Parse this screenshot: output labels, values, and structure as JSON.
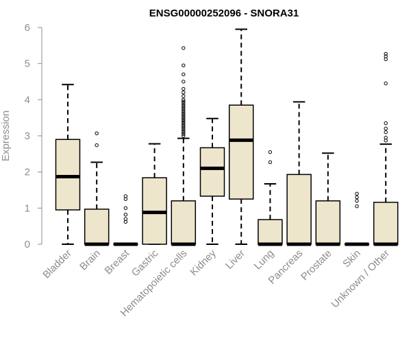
{
  "chart_data": {
    "type": "boxplot",
    "title": "ENSG00000252096 - SNORA31",
    "xlabel": "",
    "ylabel": "Expression",
    "ylim": [
      0,
      6
    ],
    "yticks": [
      "0",
      "1",
      "2",
      "3",
      "4",
      "5",
      "6"
    ],
    "grid": false,
    "colors": {
      "box_fill": "#ede6cc",
      "line": "#000000",
      "axis": "#8c8c8c",
      "text": "#8c8c8c",
      "title": "#000000"
    },
    "categories": [
      "Bladder",
      "Brain",
      "Breast",
      "Gastric",
      "Hematopoietic cells",
      "Kidney",
      "Liver",
      "Lung",
      "Pancreas",
      "Prostate",
      "Skin",
      "Unknown / Other"
    ],
    "boxes": [
      {
        "name": "Bladder",
        "whisker_low": 0,
        "q1": 0.95,
        "median": 1.87,
        "q3": 2.9,
        "whisker_high": 4.42,
        "outliers": []
      },
      {
        "name": "Brain",
        "whisker_low": 0,
        "q1": 0,
        "median": 0,
        "q3": 0.97,
        "whisker_high": 2.27,
        "outliers": [
          2.74,
          3.07
        ]
      },
      {
        "name": "Breast",
        "whisker_low": 0,
        "q1": 0,
        "median": 0,
        "q3": 0,
        "whisker_high": 0,
        "outliers": [
          0.62,
          0.7,
          0.82,
          1.0,
          1.25,
          1.33
        ]
      },
      {
        "name": "Gastric",
        "whisker_low": 0,
        "q1": 0,
        "median": 0.88,
        "q3": 1.84,
        "whisker_high": 2.78,
        "outliers": []
      },
      {
        "name": "Hematopoietic cells",
        "whisker_low": 0,
        "q1": 0,
        "median": 0,
        "q3": 1.2,
        "whisker_high": 2.93,
        "outliers": [
          3.0,
          3.05,
          3.1,
          3.15,
          3.2,
          3.25,
          3.3,
          3.35,
          3.4,
          3.45,
          3.5,
          3.55,
          3.6,
          3.65,
          3.7,
          3.75,
          3.8,
          3.85,
          3.9,
          3.95,
          4.0,
          4.1,
          4.2,
          4.3,
          4.5,
          4.7,
          4.95,
          5.43
        ]
      },
      {
        "name": "Kidney",
        "whisker_low": 0,
        "q1": 1.33,
        "median": 2.1,
        "q3": 2.67,
        "whisker_high": 3.48,
        "outliers": []
      },
      {
        "name": "Liver",
        "whisker_low": 0,
        "q1": 1.25,
        "median": 2.88,
        "q3": 3.85,
        "whisker_high": 5.95,
        "outliers": []
      },
      {
        "name": "Lung",
        "whisker_low": 0,
        "q1": 0,
        "median": 0,
        "q3": 0.68,
        "whisker_high": 1.67,
        "outliers": [
          2.27,
          2.55
        ]
      },
      {
        "name": "Pancreas",
        "whisker_low": 0,
        "q1": 0,
        "median": 0,
        "q3": 1.93,
        "whisker_high": 3.94,
        "outliers": []
      },
      {
        "name": "Prostate",
        "whisker_low": 0,
        "q1": 0,
        "median": 0,
        "q3": 1.2,
        "whisker_high": 2.52,
        "outliers": []
      },
      {
        "name": "Skin",
        "whisker_low": 0,
        "q1": 0,
        "median": 0,
        "q3": 0,
        "whisker_high": 0,
        "outliers": [
          1.05,
          1.2,
          1.3,
          1.4
        ]
      },
      {
        "name": "Unknown / Other",
        "whisker_low": 0,
        "q1": 0,
        "median": 0,
        "q3": 1.16,
        "whisker_high": 2.77,
        "outliers": [
          2.87,
          2.95,
          3.1,
          3.2,
          3.35,
          4.45,
          5.12,
          5.2,
          5.27
        ]
      }
    ]
  }
}
